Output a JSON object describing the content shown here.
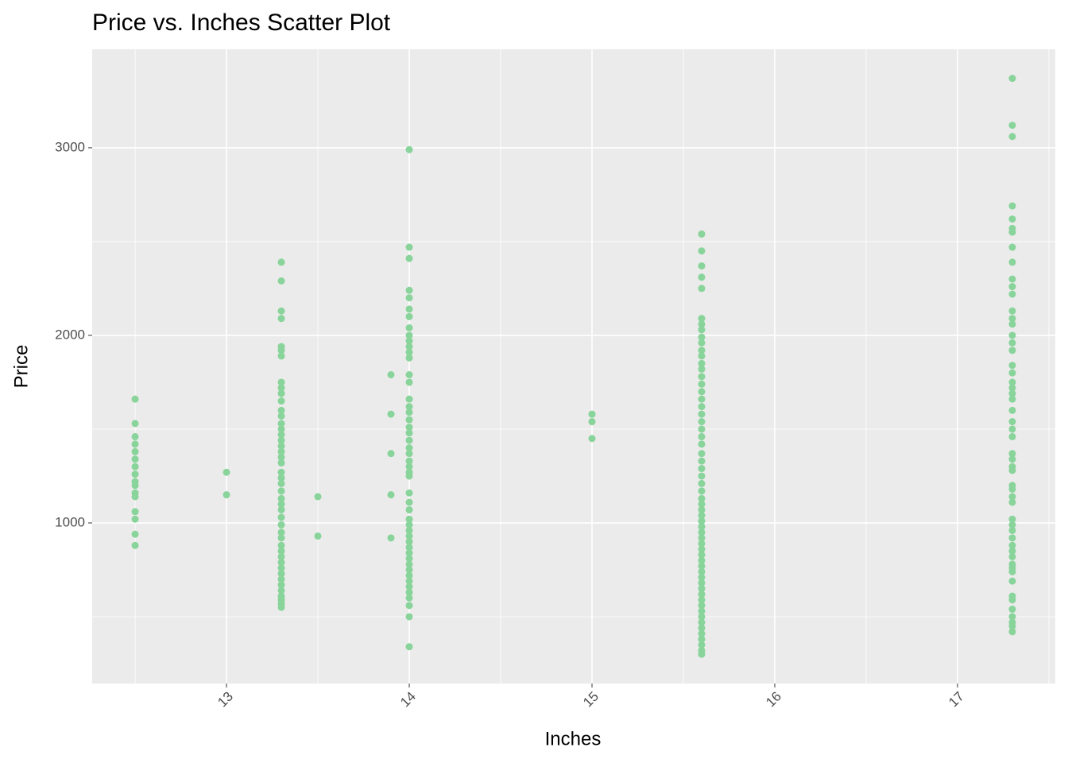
{
  "chart_data": {
    "type": "scatter",
    "title": "Price vs. Inches Scatter Plot",
    "x_label": "Inches",
    "y_label": "Price",
    "color": "#88D49A",
    "xlim": [
      12.265,
      17.535
    ],
    "ylim": [
      144,
      3525
    ],
    "xticks": [
      13,
      14,
      15,
      16,
      17
    ],
    "yticks": [
      1000,
      2000,
      3000
    ],
    "xminor": [
      12.5,
      13.5,
      14.5,
      15.5,
      16.5,
      17.5
    ],
    "yminor": [
      500,
      1500,
      2500
    ],
    "grid": true,
    "x": [
      12.5,
      12.5,
      12.5,
      12.5,
      12.5,
      12.5,
      12.5,
      12.5,
      12.5,
      12.5,
      12.5,
      12.5,
      12.5,
      12.5,
      12.5,
      12.5,
      13,
      13,
      13.3,
      13.3,
      13.3,
      13.3,
      13.3,
      13.3,
      13.3,
      13.3,
      13.3,
      13.3,
      13.3,
      13.3,
      13.3,
      13.3,
      13.3,
      13.3,
      13.3,
      13.3,
      13.3,
      13.3,
      13.3,
      13.3,
      13.3,
      13.3,
      13.3,
      13.3,
      13.3,
      13.3,
      13.3,
      13.3,
      13.3,
      13.3,
      13.3,
      13.3,
      13.3,
      13.3,
      13.3,
      13.3,
      13.3,
      13.3,
      13.3,
      13.3,
      13.3,
      13.3,
      13.3,
      13.5,
      13.5,
      13.9,
      13.9,
      13.9,
      13.9,
      13.9,
      14,
      14,
      14,
      14,
      14,
      14,
      14,
      14,
      14,
      14,
      14,
      14,
      14,
      14,
      14,
      14,
      14,
      14,
      14,
      14,
      14,
      14,
      14,
      14,
      14,
      14,
      14,
      14,
      14,
      14,
      14,
      14,
      14,
      14,
      14,
      14,
      14,
      14,
      14,
      14,
      14,
      14,
      14,
      14,
      14,
      14,
      14,
      14,
      14,
      15,
      15,
      15,
      15.6,
      15.6,
      15.6,
      15.6,
      15.6,
      15.6,
      15.6,
      15.6,
      15.6,
      15.6,
      15.6,
      15.6,
      15.6,
      15.6,
      15.6,
      15.6,
      15.6,
      15.6,
      15.6,
      15.6,
      15.6,
      15.6,
      15.6,
      15.6,
      15.6,
      15.6,
      15.6,
      15.6,
      15.6,
      15.6,
      15.6,
      15.6,
      15.6,
      15.6,
      15.6,
      15.6,
      15.6,
      15.6,
      15.6,
      15.6,
      15.6,
      15.6,
      15.6,
      15.6,
      15.6,
      15.6,
      15.6,
      15.6,
      15.6,
      15.6,
      15.6,
      15.6,
      15.6,
      15.6,
      15.6,
      15.6,
      15.6,
      15.6,
      15.6,
      17.3,
      17.3,
      17.3,
      17.3,
      17.3,
      17.3,
      17.3,
      17.3,
      17.3,
      17.3,
      17.3,
      17.3,
      17.3,
      17.3,
      17.3,
      17.3,
      17.3,
      17.3,
      17.3,
      17.3,
      17.3,
      17.3,
      17.3,
      17.3,
      17.3,
      17.3,
      17.3,
      17.3,
      17.3,
      17.3,
      17.3,
      17.3,
      17.3,
      17.3,
      17.3,
      17.3,
      17.3,
      17.3,
      17.3,
      17.3,
      17.3,
      17.3,
      17.3,
      17.3,
      17.3,
      17.3,
      17.3,
      17.3,
      17.3,
      17.3,
      17.3,
      17.3,
      17.3,
      17.3
    ],
    "values": [
      1660,
      1530,
      1460,
      1420,
      1380,
      1340,
      1300,
      1260,
      1220,
      1200,
      1160,
      1140,
      1060,
      1020,
      940,
      880,
      1270,
      1150,
      2390,
      2290,
      2130,
      2090,
      1940,
      1920,
      1890,
      1750,
      1720,
      1690,
      1650,
      1600,
      1570,
      1530,
      1500,
      1470,
      1440,
      1410,
      1380,
      1350,
      1320,
      1270,
      1240,
      1210,
      1170,
      1130,
      1100,
      1070,
      1030,
      990,
      950,
      920,
      880,
      850,
      820,
      790,
      760,
      730,
      700,
      670,
      640,
      610,
      590,
      570,
      550,
      1140,
      930,
      1790,
      1580,
      1370,
      1150,
      920,
      2990,
      2470,
      2410,
      2240,
      2200,
      2140,
      2100,
      2040,
      2000,
      1970,
      1940,
      1910,
      1880,
      1790,
      1750,
      1660,
      1620,
      1590,
      1550,
      1510,
      1480,
      1440,
      1400,
      1370,
      1330,
      1300,
      1270,
      1250,
      1160,
      1110,
      1070,
      1020,
      990,
      960,
      930,
      900,
      870,
      840,
      810,
      780,
      750,
      720,
      690,
      660,
      630,
      600,
      560,
      500,
      340,
      1580,
      1540,
      1450,
      2540,
      2450,
      2370,
      2310,
      2250,
      2090,
      2060,
      2030,
      1990,
      1960,
      1920,
      1890,
      1850,
      1820,
      1780,
      1740,
      1700,
      1660,
      1620,
      1580,
      1540,
      1500,
      1460,
      1420,
      1370,
      1330,
      1290,
      1250,
      1210,
      1170,
      1130,
      1100,
      1070,
      1040,
      1010,
      980,
      950,
      920,
      890,
      860,
      830,
      800,
      770,
      740,
      710,
      680,
      650,
      620,
      590,
      560,
      530,
      500,
      470,
      440,
      410,
      380,
      350,
      320,
      300,
      3370,
      3120,
      3060,
      2690,
      2620,
      2570,
      2550,
      2470,
      2390,
      2300,
      2260,
      2220,
      2130,
      2090,
      2060,
      2000,
      1960,
      1920,
      1840,
      1800,
      1750,
      1720,
      1690,
      1660,
      1600,
      1540,
      1500,
      1460,
      1370,
      1340,
      1300,
      1280,
      1200,
      1180,
      1140,
      1110,
      1020,
      990,
      960,
      920,
      880,
      850,
      820,
      780,
      760,
      740,
      690,
      610,
      590,
      540,
      500,
      470,
      450,
      420
    ]
  }
}
